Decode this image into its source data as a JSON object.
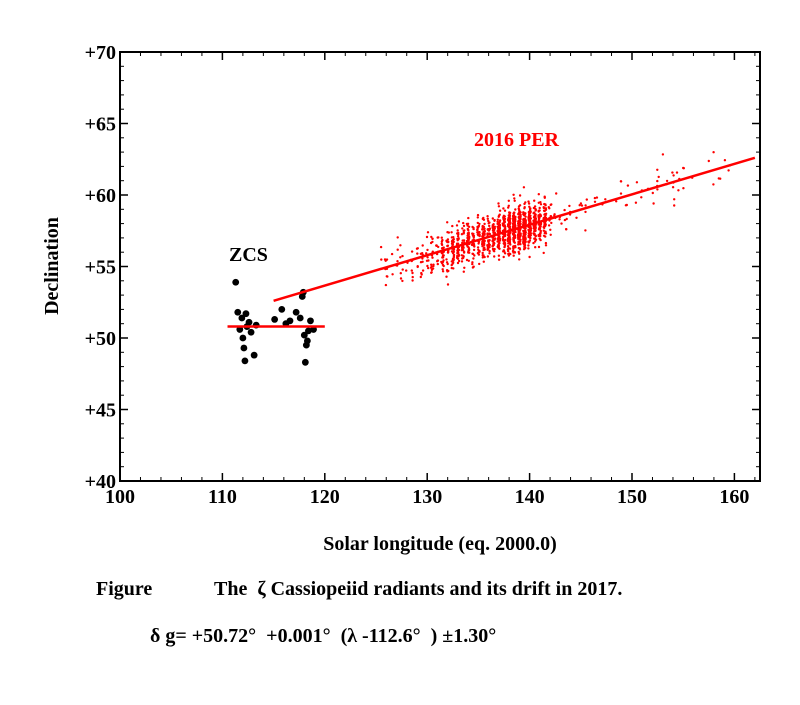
{
  "chart_data": {
    "type": "scatter",
    "xlabel": "Solar longitude (eq. 2000.0)",
    "ylabel": "Declination",
    "xlim": [
      100,
      162.5
    ],
    "ylim": [
      40,
      70
    ],
    "x_ticks": [
      100,
      110,
      120,
      130,
      140,
      150,
      160
    ],
    "y_ticks": [
      40,
      45,
      50,
      55,
      60,
      65,
      70
    ],
    "y_tick_labels": [
      "+40",
      "+45",
      "+50",
      "+55",
      "+60",
      "+65",
      "+70"
    ],
    "grid": false,
    "series": [
      {
        "name": "ZCS",
        "color": "#000000",
        "points": [
          [
            111.3,
            53.9
          ],
          [
            111.5,
            51.8
          ],
          [
            111.7,
            50.6
          ],
          [
            111.9,
            51.4
          ],
          [
            112.0,
            50.0
          ],
          [
            112.1,
            49.3
          ],
          [
            112.2,
            48.4
          ],
          [
            112.3,
            51.7
          ],
          [
            112.4,
            50.8
          ],
          [
            112.6,
            51.1
          ],
          [
            112.8,
            50.4
          ],
          [
            113.1,
            48.8
          ],
          [
            113.3,
            50.9
          ],
          [
            115.1,
            51.3
          ],
          [
            115.8,
            52.0
          ],
          [
            116.2,
            51.0
          ],
          [
            116.6,
            51.2
          ],
          [
            117.2,
            51.8
          ],
          [
            117.6,
            51.4
          ],
          [
            117.8,
            52.9
          ],
          [
            117.9,
            53.2
          ],
          [
            118.0,
            50.2
          ],
          [
            118.1,
            48.3
          ],
          [
            118.2,
            49.5
          ],
          [
            118.3,
            49.8
          ],
          [
            118.4,
            50.5
          ],
          [
            118.6,
            51.2
          ],
          [
            118.9,
            50.6
          ]
        ]
      },
      {
        "name": "2016 PER",
        "color": "#ff0000"
      }
    ],
    "fit_lines": [
      {
        "series": "ZCS",
        "color": "#ff0000",
        "x": [
          110.5,
          120.0
        ],
        "y": [
          50.8,
          50.8
        ]
      },
      {
        "series": "2016 PER",
        "color": "#ff0000",
        "x": [
          115.0,
          162.0
        ],
        "y": [
          52.6,
          62.6
        ]
      }
    ],
    "annotations": [
      {
        "text": "ZCS",
        "color": "#000000"
      },
      {
        "text": "2016 PER",
        "color": "#ff0000"
      }
    ]
  },
  "caption": {
    "line1_label": "Figure",
    "line1_text": "The  ζ Cassiopeiid radiants and its drift in 2017.",
    "line2_text": "δ g= +50.72°  +0.001°  (λ -112.6°  ) ±1.30°"
  }
}
